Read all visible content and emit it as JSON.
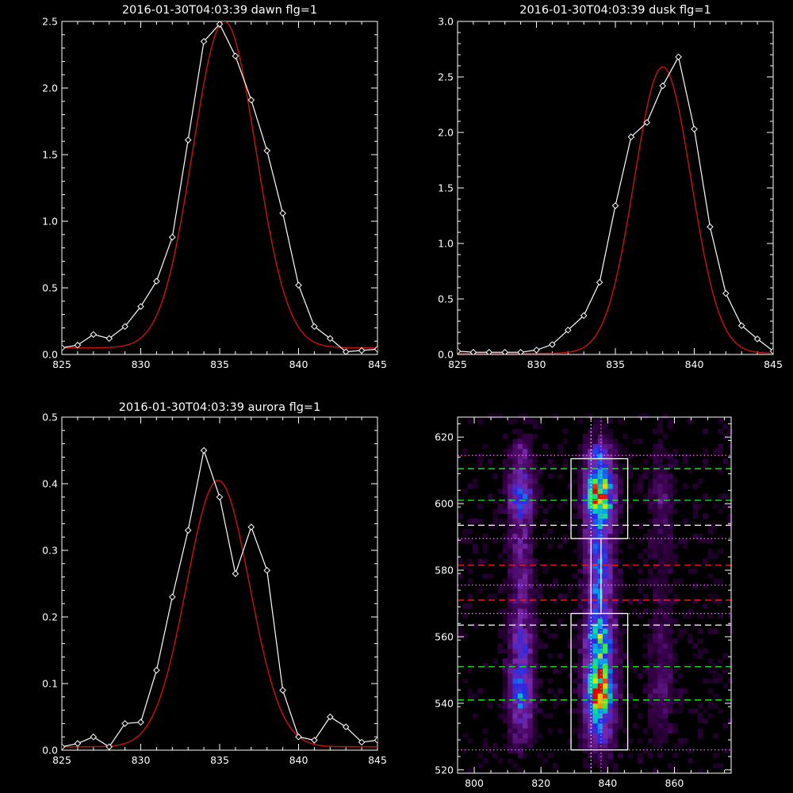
{
  "colors": {
    "background": "#000000",
    "axis": "#ffffff",
    "data_line": "#ffffff",
    "fit_line": "#d01010",
    "green_dash": "#22ee22",
    "red_dash": "#ee2222",
    "white_dash": "#ffffff",
    "magenta_dot": "#ff66ff"
  },
  "chart_data": [
    {
      "type": "line",
      "title": "2016-01-30T04:03:39 dawn flg=1",
      "xlim": [
        825,
        845
      ],
      "ylim": [
        0,
        2.5
      ],
      "xticks": [
        825,
        830,
        835,
        840,
        845
      ],
      "xtick_labels": [
        "825",
        "830",
        "835",
        "840",
        "845"
      ],
      "yticks": [
        0,
        0.5,
        1.0,
        1.5,
        2.0,
        2.5
      ],
      "ytick_labels": [
        "0.0",
        "0.5",
        "1.0",
        "1.5",
        "2.0",
        "2.5"
      ],
      "series": [
        {
          "style": "line-diamond",
          "color": "#ffffff",
          "x": [
            825,
            826,
            827,
            828,
            829,
            830,
            831,
            832,
            833,
            834,
            835,
            836,
            837,
            838,
            839,
            840,
            841,
            842,
            843,
            844,
            845
          ],
          "y": [
            0.05,
            0.07,
            0.15,
            0.12,
            0.21,
            0.36,
            0.55,
            0.88,
            1.61,
            2.35,
            2.48,
            2.24,
            1.91,
            1.53,
            1.06,
            0.52,
            0.21,
            0.12,
            0.02,
            0.03,
            0.04
          ]
        },
        {
          "style": "gaussian",
          "color": "#d01010",
          "amplitude": 2.45,
          "center": 835.3,
          "sigma": 2.0,
          "offset": 0.05
        }
      ]
    },
    {
      "type": "line",
      "title": "2016-01-30T04:03:39 dusk flg=1",
      "xlim": [
        825,
        845
      ],
      "ylim": [
        0,
        3.0
      ],
      "xticks": [
        825,
        830,
        835,
        840,
        845
      ],
      "xtick_labels": [
        "825",
        "830",
        "835",
        "840",
        "845"
      ],
      "yticks": [
        0,
        0.5,
        1.0,
        1.5,
        2.0,
        2.5,
        3.0
      ],
      "ytick_labels": [
        "0.0",
        "0.5",
        "1.0",
        "1.5",
        "2.0",
        "2.5",
        "3.0"
      ],
      "series": [
        {
          "style": "line-diamond",
          "color": "#ffffff",
          "x": [
            825,
            826,
            827,
            828,
            829,
            830,
            831,
            832,
            833,
            834,
            835,
            836,
            837,
            838,
            839,
            840,
            841,
            842,
            843,
            844,
            845
          ],
          "y": [
            0.03,
            0.02,
            0.02,
            0.02,
            0.02,
            0.04,
            0.09,
            0.22,
            0.35,
            0.65,
            1.34,
            1.96,
            2.09,
            2.42,
            2.68,
            2.03,
            1.15,
            0.55,
            0.26,
            0.14,
            0.03
          ]
        },
        {
          "style": "gaussian",
          "color": "#d01010",
          "amplitude": 2.58,
          "center": 838.0,
          "sigma": 1.8,
          "offset": 0.01
        }
      ]
    },
    {
      "type": "line",
      "title": "2016-01-30T04:03:39 aurora flg=1",
      "xlim": [
        825,
        845
      ],
      "ylim": [
        0,
        0.5
      ],
      "xticks": [
        825,
        830,
        835,
        840,
        845
      ],
      "xtick_labels": [
        "825",
        "830",
        "835",
        "840",
        "845"
      ],
      "yticks": [
        0,
        0.1,
        0.2,
        0.3,
        0.4,
        0.5
      ],
      "ytick_labels": [
        "0.0",
        "0.1",
        "0.2",
        "0.3",
        "0.4",
        "0.5"
      ],
      "series": [
        {
          "style": "line-diamond",
          "color": "#ffffff",
          "x": [
            825,
            826,
            827,
            828,
            829,
            830,
            831,
            832,
            833,
            834,
            835,
            836,
            837,
            838,
            839,
            840,
            841,
            842,
            843,
            844,
            845
          ],
          "y": [
            0.005,
            0.01,
            0.02,
            0.005,
            0.04,
            0.042,
            0.12,
            0.23,
            0.33,
            0.45,
            0.38,
            0.265,
            0.335,
            0.27,
            0.09,
            0.02,
            0.015,
            0.05,
            0.035,
            0.012,
            0.015
          ]
        },
        {
          "style": "gaussian",
          "color": "#d01010",
          "amplitude": 0.4,
          "center": 834.9,
          "sigma": 2.0,
          "offset": 0.005
        }
      ]
    },
    {
      "type": "heatmap",
      "title": "",
      "xlim": [
        795,
        877
      ],
      "ylim": [
        519,
        626
      ],
      "xticks": [
        800,
        820,
        840,
        860
      ],
      "xtick_labels": [
        "800",
        "820",
        "840",
        "860"
      ],
      "yticks": [
        520,
        540,
        560,
        580,
        600,
        620
      ],
      "ytick_labels": [
        "520",
        "540",
        "560",
        "580",
        "600",
        "620"
      ],
      "grid_cell_data_units": 1.5,
      "emission_columns": [
        {
          "x_center": 814,
          "width": 2.5,
          "strength": 0.45
        },
        {
          "x_center": 837.5,
          "width": 2.8,
          "strength": 0.95
        },
        {
          "x_center": 856,
          "width": 2.5,
          "strength": 0.16
        }
      ],
      "emission_bands": [
        {
          "y_center": 602,
          "height": 5.0,
          "strength": 1.0
        },
        {
          "y_center": 545,
          "height": 6.0,
          "strength": 1.0
        },
        {
          "y_center": 558,
          "height": 5.0,
          "strength": 0.6
        }
      ],
      "boxes": [
        {
          "x0": 829,
          "x1": 846,
          "y0": 589.5,
          "y1": 613.5,
          "color": "#ffffff"
        },
        {
          "x0": 829,
          "x1": 846,
          "y0": 526,
          "y1": 567,
          "color": "#ffffff"
        },
        {
          "x0": 835,
          "x1": 838,
          "y0": 567,
          "y1": 589.5,
          "color": "#ffffff"
        }
      ],
      "hlines": [
        {
          "y": 614.5,
          "style": "dotted",
          "color": "#ff66ff"
        },
        {
          "y": 610.5,
          "style": "dashed",
          "color": "#22ee22"
        },
        {
          "y": 601,
          "style": "dashed",
          "color": "#22ee22"
        },
        {
          "y": 593.5,
          "style": "dashed",
          "color": "#ffffff"
        },
        {
          "y": 589.5,
          "style": "dotted",
          "color": "#ff66ff"
        },
        {
          "y": 581.5,
          "style": "dashed",
          "color": "#ee2222"
        },
        {
          "y": 575.5,
          "style": "dotted",
          "color": "#ff66ff"
        },
        {
          "y": 571,
          "style": "dashed",
          "color": "#ee2222"
        },
        {
          "y": 567,
          "style": "dotted",
          "color": "#ff66ff"
        },
        {
          "y": 563.5,
          "style": "dashed",
          "color": "#ffffff"
        },
        {
          "y": 551,
          "style": "dashed",
          "color": "#22ee22"
        },
        {
          "y": 541,
          "style": "dashed",
          "color": "#22ee22"
        },
        {
          "y": 526,
          "style": "dotted",
          "color": "#ff66ff"
        }
      ],
      "vlines": [
        {
          "x": 835,
          "style": "dotted",
          "color": "#ffffff"
        },
        {
          "x": 838,
          "style": "dotted",
          "color": "#ff66ff"
        }
      ]
    }
  ]
}
